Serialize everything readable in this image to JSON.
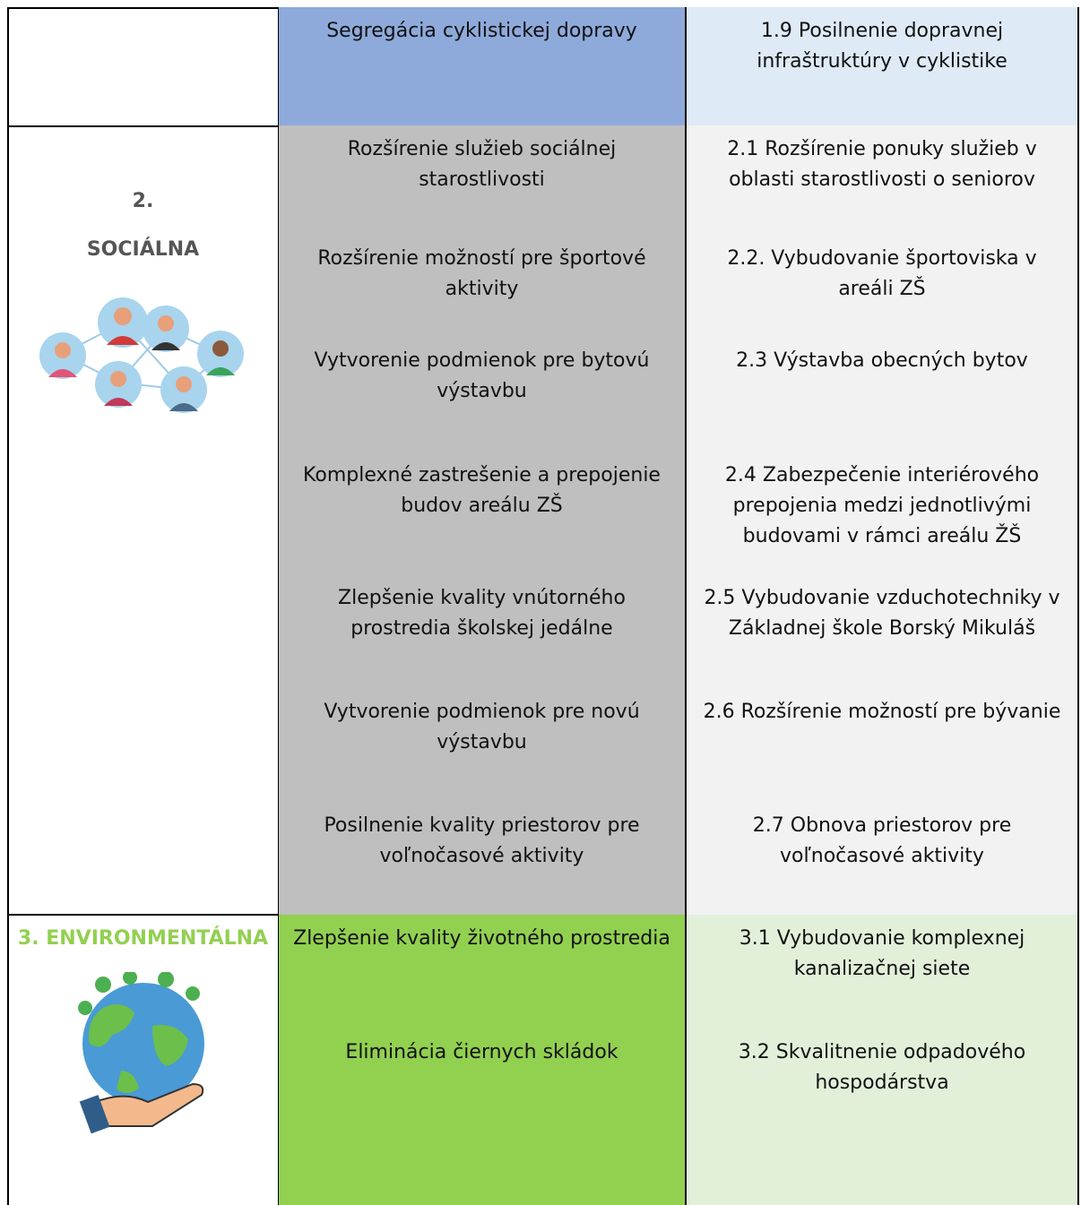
{
  "table": {
    "rows": [
      {
        "goal": "Segregácia cyklistickej dopravy",
        "measure": "1.9 Posilnenie dopravnej infraštruktúry v cyklistike"
      },
      {
        "goal": "Rozšírenie služieb sociálnej starostlivosti",
        "measure": "2.1 Rozšírenie ponuky služieb v oblasti starostlivosti o seniorov"
      },
      {
        "goal": "Rozšírenie možností pre športové aktivity",
        "measure": "2.2. Vybudovanie športoviska v areáli ZŠ"
      },
      {
        "goal": "Vytvorenie podmienok pre bytovú výstavbu",
        "measure": "2.3 Výstavba obecných bytov"
      },
      {
        "goal": "Komplexné zastrešenie a prepojenie budov areálu ZŠ",
        "measure": "2.4 Zabezpečenie interiérového prepojenia medzi jednotlivými budovami v rámci areálu ŽŠ"
      },
      {
        "goal": "Zlepšenie kvality vnútorného prostredia školskej jedálne",
        "measure": "2.5 Vybudovanie vzduchotechniky v Základnej škole Borský Mikuláš"
      },
      {
        "goal": "Vytvorenie podmienok pre novú výstavbu",
        "measure": "2.6 Rozšírenie možností pre bývanie"
      },
      {
        "goal": "Posilnenie kvality priestorov pre voľnočasové aktivity",
        "measure": "2.7 Obnova priestorov pre voľnočasové aktivity"
      },
      {
        "goal": "Zlepšenie kvality životného prostredia",
        "measure": "3.1 Vybudovanie komplexnej kanalizačnej siete"
      },
      {
        "goal": "Eliminácia čiernych skládok",
        "measure": "3.2 Skvalitnenie odpadového hospodárstva"
      }
    ]
  },
  "sections": [
    {
      "number": "2.",
      "name": "SOCIÁLNA"
    },
    {
      "name": "3. ENVIRONMENTÁLNA"
    }
  ]
}
